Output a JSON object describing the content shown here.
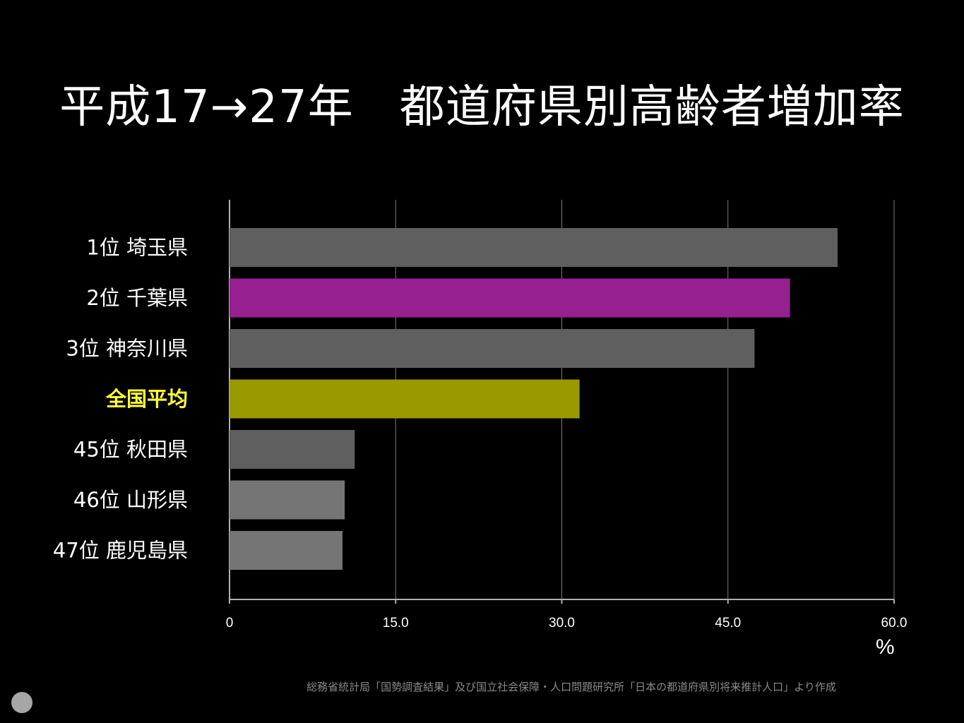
{
  "title": "平成17→27年　都道府県別高齢者増加率",
  "source": "総務省統計局「国勢調査結果」及び国立社会保障・人口問題研究所「日本の都道府県別将来推計人口」より作成",
  "chart_data": {
    "type": "bar",
    "orientation": "horizontal",
    "title": "平成17→27年　都道府県別高齢者増加率",
    "categories": [
      "1位 埼玉県",
      "2位 千葉県",
      "3位 神奈川県",
      "全国平均",
      "45位 秋田県",
      "46位 山形県",
      "47位 鹿児島県"
    ],
    "values": [
      54.9,
      50.6,
      47.4,
      31.6,
      11.3,
      10.4,
      10.2
    ],
    "bar_colors": [
      "#5f5f5f",
      "#962090",
      "#5f5f5f",
      "#999900",
      "#5f5f5f",
      "#757575",
      "#757575"
    ],
    "label_colors": [
      "#ffffff",
      "#ffffff",
      "#ffffff",
      "#ffff33",
      "#ffffff",
      "#ffffff",
      "#ffffff"
    ],
    "xlim": [
      0,
      60
    ],
    "xticks": [
      0,
      15,
      30,
      45,
      60
    ],
    "xtick_labels": [
      "0",
      "15.0",
      "30.0",
      "45.0",
      "60.0"
    ],
    "xlabel": "%",
    "grid": true
  }
}
